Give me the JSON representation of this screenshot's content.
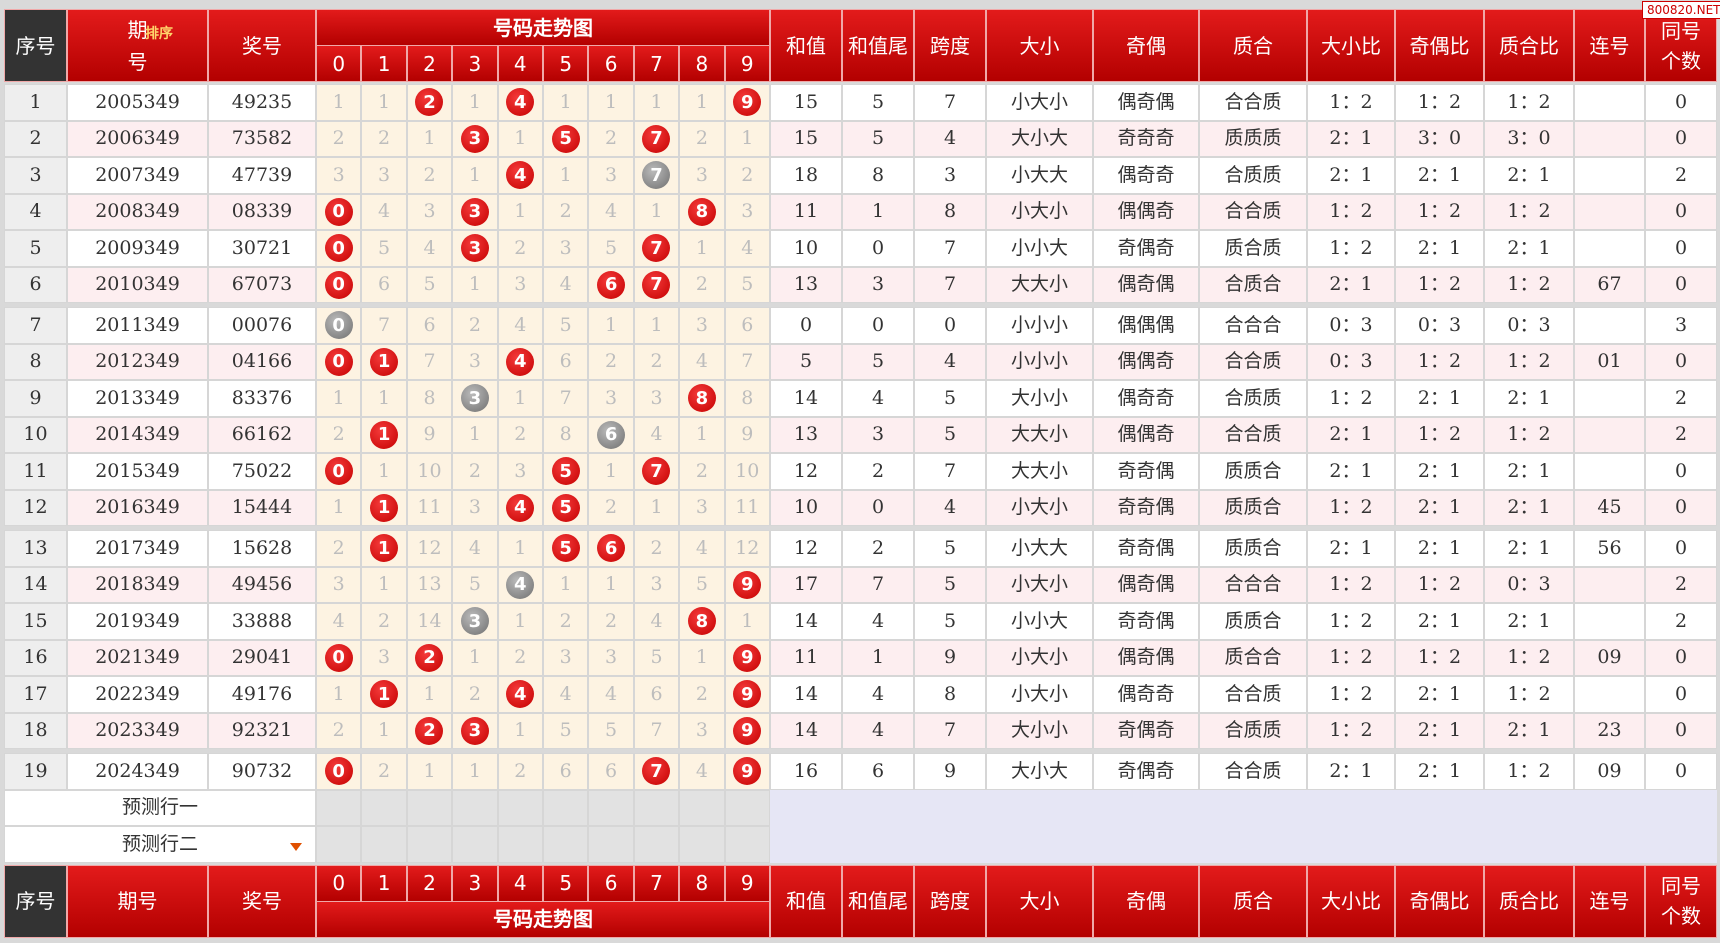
{
  "watermark": "800820.NET",
  "header": {
    "no": "序号",
    "issue": "期号",
    "sort": "排序",
    "prize": "奖号",
    "trend": "号码走势图",
    "digits": [
      "0",
      "1",
      "2",
      "3",
      "4",
      "5",
      "6",
      "7",
      "8",
      "9"
    ],
    "cols": [
      "和值",
      "和值尾",
      "跨度",
      "大小",
      "奇偶",
      "质合",
      "大小比",
      "奇偶比",
      "质合比",
      "连号",
      "同号个数"
    ]
  },
  "rows": [
    {
      "no": 1,
      "issue": "2005349",
      "prize": "49235",
      "trend": [
        1,
        1,
        {
          "ball": 2
        },
        1,
        {
          "ball": 4
        },
        1,
        1,
        1,
        1,
        {
          "ball": 9
        }
      ],
      "stats": [
        15,
        5,
        7,
        "小大小",
        "偶奇偶",
        "合合质",
        "1：2",
        "1：2",
        "1：2",
        null,
        0
      ]
    },
    {
      "no": 2,
      "issue": "2006349",
      "prize": "73582",
      "trend": [
        2,
        2,
        1,
        {
          "ball": 3
        },
        1,
        {
          "ball": 5
        },
        2,
        {
          "ball": 7
        },
        2,
        1
      ],
      "stats": [
        15,
        5,
        4,
        "大小大",
        "奇奇奇",
        "质质质",
        "2：1",
        "3：0",
        "3：0",
        null,
        0
      ]
    },
    {
      "no": 3,
      "issue": "2007349",
      "prize": "47739",
      "trend": [
        3,
        3,
        2,
        1,
        {
          "ball": 4
        },
        1,
        3,
        {
          "ball": 7,
          "repeat": true
        },
        3,
        2
      ],
      "stats": [
        18,
        8,
        3,
        "小大大",
        "偶奇奇",
        "合质质",
        "2：1",
        "2：1",
        "2：1",
        null,
        2
      ]
    },
    {
      "no": 4,
      "issue": "2008349",
      "prize": "08339",
      "trend": [
        {
          "ball": 0
        },
        4,
        3,
        {
          "ball": 3
        },
        1,
        2,
        4,
        1,
        {
          "ball": 8
        },
        3
      ],
      "stats": [
        11,
        1,
        8,
        "小大小",
        "偶偶奇",
        "合合质",
        "1：2",
        "1：2",
        "1：2",
        null,
        0
      ]
    },
    {
      "no": 5,
      "issue": "2009349",
      "prize": "30721",
      "trend": [
        {
          "ball": 0
        },
        5,
        4,
        {
          "ball": 3
        },
        2,
        3,
        5,
        {
          "ball": 7
        },
        1,
        4
      ],
      "stats": [
        10,
        0,
        7,
        "小小大",
        "奇偶奇",
        "质合质",
        "1：2",
        "2：1",
        "2：1",
        null,
        0
      ]
    },
    {
      "no": 6,
      "issue": "2010349",
      "prize": "67073",
      "trend": [
        {
          "ball": 0
        },
        6,
        5,
        1,
        3,
        4,
        {
          "ball": 6
        },
        {
          "ball": 7
        },
        2,
        5
      ],
      "stats": [
        13,
        3,
        7,
        "大大小",
        "偶奇偶",
        "合质合",
        "2：1",
        "1：2",
        "1：2",
        "67",
        0
      ]
    },
    {
      "no": 7,
      "issue": "2011349",
      "prize": "00076",
      "trend": [
        {
          "ball": 0,
          "repeat": true
        },
        7,
        6,
        2,
        4,
        5,
        1,
        1,
        3,
        6
      ],
      "stats": [
        0,
        0,
        0,
        "小小小",
        "偶偶偶",
        "合合合",
        "0：3",
        "0：3",
        "0：3",
        null,
        3
      ]
    },
    {
      "no": 8,
      "issue": "2012349",
      "prize": "04166",
      "trend": [
        {
          "ball": 0
        },
        {
          "ball": 1
        },
        7,
        3,
        {
          "ball": 4
        },
        6,
        2,
        2,
        4,
        7
      ],
      "stats": [
        5,
        5,
        4,
        "小小小",
        "偶偶奇",
        "合合质",
        "0：3",
        "1：2",
        "1：2",
        "01",
        0
      ]
    },
    {
      "no": 9,
      "issue": "2013349",
      "prize": "83376",
      "trend": [
        1,
        1,
        8,
        {
          "ball": 3,
          "repeat": true
        },
        1,
        7,
        3,
        3,
        {
          "ball": 8
        },
        8
      ],
      "stats": [
        14,
        4,
        5,
        "大小小",
        "偶奇奇",
        "合质质",
        "1：2",
        "2：1",
        "2：1",
        null,
        2
      ]
    },
    {
      "no": 10,
      "issue": "2014349",
      "prize": "66162",
      "trend": [
        2,
        {
          "ball": 1
        },
        9,
        1,
        2,
        8,
        {
          "ball": 6,
          "repeat": true
        },
        4,
        1,
        9
      ],
      "stats": [
        13,
        3,
        5,
        "大大小",
        "偶偶奇",
        "合合质",
        "2：1",
        "1：2",
        "1：2",
        null,
        2
      ]
    },
    {
      "no": 11,
      "issue": "2015349",
      "prize": "75022",
      "trend": [
        {
          "ball": 0
        },
        1,
        10,
        2,
        3,
        {
          "ball": 5
        },
        1,
        {
          "ball": 7
        },
        2,
        10
      ],
      "stats": [
        12,
        2,
        7,
        "大大小",
        "奇奇偶",
        "质质合",
        "2：1",
        "2：1",
        "2：1",
        null,
        0
      ]
    },
    {
      "no": 12,
      "issue": "2016349",
      "prize": "15444",
      "trend": [
        1,
        {
          "ball": 1
        },
        11,
        3,
        {
          "ball": 4
        },
        {
          "ball": 5
        },
        2,
        1,
        3,
        11
      ],
      "stats": [
        10,
        0,
        4,
        "小大小",
        "奇奇偶",
        "质质合",
        "1：2",
        "2：1",
        "2：1",
        "45",
        0
      ]
    },
    {
      "no": 13,
      "issue": "2017349",
      "prize": "15628",
      "trend": [
        2,
        {
          "ball": 1
        },
        12,
        4,
        1,
        {
          "ball": 5
        },
        {
          "ball": 6
        },
        2,
        4,
        12
      ],
      "stats": [
        12,
        2,
        5,
        "小大大",
        "奇奇偶",
        "质质合",
        "2：1",
        "2：1",
        "2：1",
        "56",
        0
      ]
    },
    {
      "no": 14,
      "issue": "2018349",
      "prize": "49456",
      "trend": [
        3,
        1,
        13,
        5,
        {
          "ball": 4,
          "repeat": true
        },
        1,
        1,
        3,
        5,
        {
          "ball": 9
        }
      ],
      "stats": [
        17,
        7,
        5,
        "小大小",
        "偶奇偶",
        "合合合",
        "1：2",
        "1：2",
        "0：3",
        null,
        2
      ]
    },
    {
      "no": 15,
      "issue": "2019349",
      "prize": "33888",
      "trend": [
        4,
        2,
        14,
        {
          "ball": 3,
          "repeat": true
        },
        1,
        2,
        2,
        4,
        {
          "ball": 8
        },
        1
      ],
      "stats": [
        14,
        4,
        5,
        "小小大",
        "奇奇偶",
        "质质合",
        "1：2",
        "2：1",
        "2：1",
        null,
        2
      ]
    },
    {
      "no": 16,
      "issue": "2021349",
      "prize": "29041",
      "trend": [
        {
          "ball": 0
        },
        3,
        {
          "ball": 2
        },
        1,
        2,
        3,
        3,
        5,
        1,
        {
          "ball": 9
        }
      ],
      "stats": [
        11,
        1,
        9,
        "小大小",
        "偶奇偶",
        "质合合",
        "1：2",
        "1：2",
        "1：2",
        "09",
        0
      ]
    },
    {
      "no": 17,
      "issue": "2022349",
      "prize": "49176",
      "trend": [
        1,
        {
          "ball": 1
        },
        1,
        2,
        {
          "ball": 4
        },
        4,
        4,
        6,
        2,
        {
          "ball": 9
        }
      ],
      "stats": [
        14,
        4,
        8,
        "小大小",
        "偶奇奇",
        "合合质",
        "1：2",
        "2：1",
        "1：2",
        null,
        0
      ]
    },
    {
      "no": 18,
      "issue": "2023349",
      "prize": "92321",
      "trend": [
        2,
        1,
        {
          "ball": 2
        },
        {
          "ball": 3
        },
        1,
        5,
        5,
        7,
        3,
        {
          "ball": 9
        }
      ],
      "stats": [
        14,
        4,
        7,
        "大小小",
        "奇偶奇",
        "合质质",
        "1：2",
        "2：1",
        "2：1",
        "23",
        0
      ]
    },
    {
      "no": 19,
      "issue": "2024349",
      "prize": "90732",
      "trend": [
        {
          "ball": 0
        },
        2,
        1,
        1,
        2,
        6,
        6,
        {
          "ball": 7
        },
        4,
        {
          "ball": 9
        }
      ],
      "stats": [
        16,
        6,
        9,
        "大小大",
        "奇偶奇",
        "合合质",
        "2：1",
        "2：1",
        "1：2",
        "09",
        0
      ]
    }
  ],
  "predict": [
    "预测行一",
    "预测行二"
  ]
}
